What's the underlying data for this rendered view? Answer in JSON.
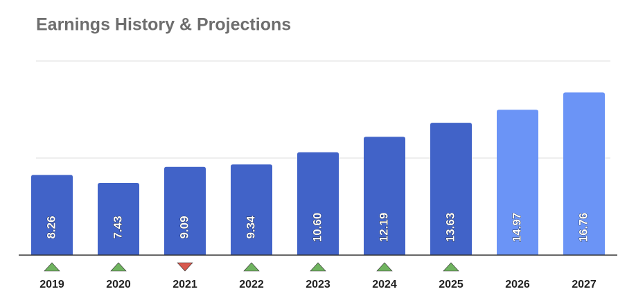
{
  "chart_data": {
    "type": "bar",
    "title": "Earnings History & Projections",
    "categories": [
      "2019",
      "2020",
      "2021",
      "2022",
      "2023",
      "2024",
      "2025",
      "2026",
      "2027"
    ],
    "values": [
      8.26,
      7.43,
      9.09,
      9.34,
      10.6,
      12.19,
      13.63,
      14.97,
      16.76
    ],
    "value_labels": [
      "8.26",
      "7.43",
      "9.09",
      "9.34",
      "10.60",
      "12.19",
      "13.63",
      "14.97",
      "16.76"
    ],
    "colors": [
      "#4163c8",
      "#4163c8",
      "#4163c8",
      "#4163c8",
      "#4163c8",
      "#4163c8",
      "#4163c8",
      "#6b94f6",
      "#6b94f6"
    ],
    "markers": [
      "up",
      "up",
      "down",
      "up",
      "up",
      "up",
      "up",
      null,
      null
    ],
    "marker_colors": {
      "up": "#6fb35f",
      "down": "#d85a4f"
    },
    "ylim": [
      0,
      20
    ],
    "yticks": [
      0,
      10,
      20
    ],
    "grid": true
  }
}
